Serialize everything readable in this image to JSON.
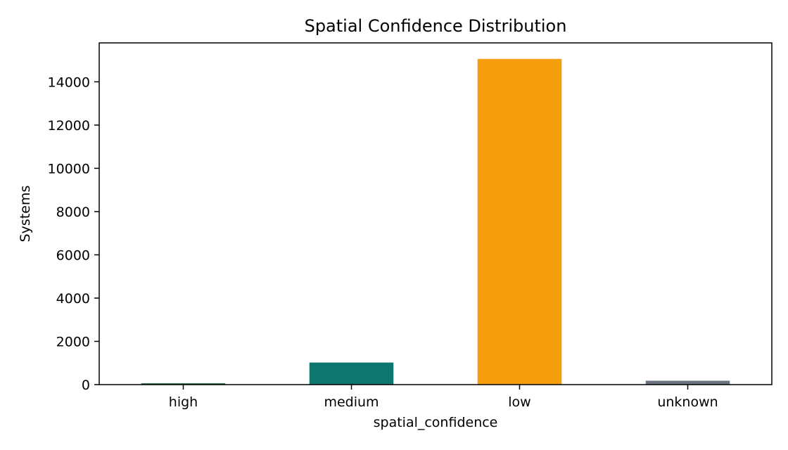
{
  "chart_data": {
    "type": "bar",
    "title": "Spatial Confidence Distribution",
    "xlabel": "spatial_confidence",
    "ylabel": "Systems",
    "categories": [
      "high",
      "medium",
      "low",
      "unknown"
    ],
    "values": [
      60,
      1020,
      15060,
      180
    ],
    "colors": [
      "#1a6b3c",
      "#0f766e",
      "#f59e0b",
      "#6b7280"
    ],
    "ylim": [
      0,
      15800
    ],
    "yticks": [
      0,
      2000,
      4000,
      6000,
      8000,
      10000,
      12000,
      14000
    ],
    "ytick_labels": [
      "0",
      "2000",
      "4000",
      "6000",
      "8000",
      "10000",
      "12000",
      "14000"
    ],
    "grid": false,
    "legend": "none"
  }
}
